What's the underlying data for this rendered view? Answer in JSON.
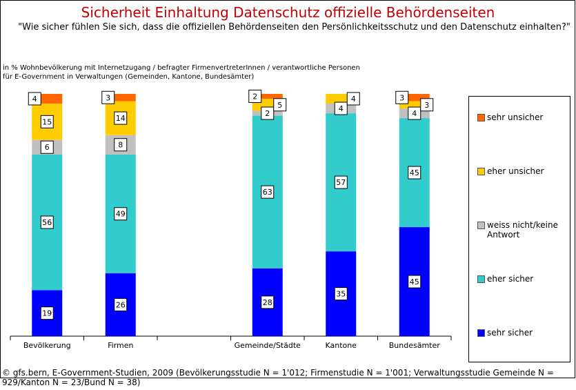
{
  "chart_data": {
    "type": "stacked-bar",
    "title": "Sicherheit Einhaltung Datenschutz offizielle Behördenseiten",
    "subtitle": "\"Wie sicher fühlen Sie sich, dass die offiziellen Behördenseiten den Persönlichkeitsschutz und den Datenschutz einhalten?\"",
    "note": "in % Wohnbevölkerung mit Internetzugang / befragter FirmenvertreterInnen / verantwortliche Personen für E-Government in Verwaltungen (Gemeinden, Kantone, Bundesämter)",
    "source": "© gfs.bern, E-Government-Studien, 2009 (Bevölkerungsstudie N = 1'012; Firmenstudie N = 1'001; Verwaltungsstudie Gemeinde N = 929/Kanton N = 23/Bund N = 38)",
    "categories": [
      "Bevölkerung",
      "Firmen",
      null,
      "Gemeinde/Städte",
      "Kantone",
      "Bundesämter"
    ],
    "series": [
      {
        "name": "sehr sicher",
        "color": "#0000ff",
        "values": [
          19,
          26,
          null,
          28,
          35,
          45
        ]
      },
      {
        "name": "eher sicher",
        "color": "#33cccc",
        "values": [
          56,
          49,
          null,
          63,
          57,
          45
        ]
      },
      {
        "name": "weiss nicht/keine Antwort",
        "color": "#c0c0c0",
        "values": [
          6,
          8,
          null,
          2,
          4,
          4
        ]
      },
      {
        "name": "eher unsicher",
        "color": "#ffcc00",
        "values": [
          15,
          14,
          null,
          5,
          4,
          3
        ]
      },
      {
        "name": "sehr unsicher",
        "color": "#ff6600",
        "values": [
          4,
          3,
          null,
          2,
          null,
          3
        ]
      }
    ],
    "ylim": [
      0,
      100
    ]
  }
}
